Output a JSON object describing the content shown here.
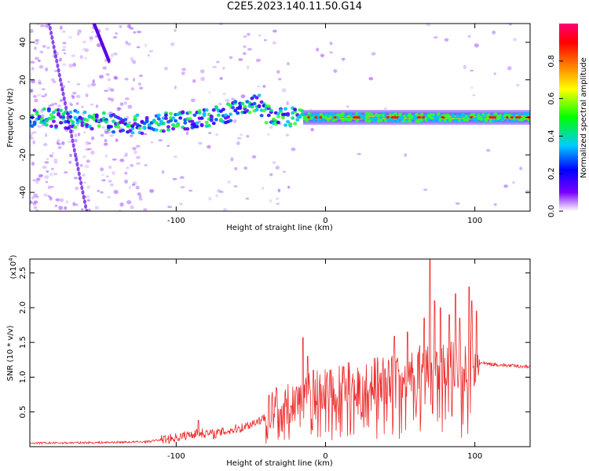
{
  "title": "C2E5.2023.140.11.50.G14",
  "chart_data": [
    {
      "type": "heatmap",
      "xlabel": "Height of straight line (km)",
      "ylabel": "Frequency (Hz)",
      "xlim": [
        -198,
        137
      ],
      "ylim": [
        -50,
        50
      ],
      "x_ticks": [
        -100,
        0,
        100
      ],
      "y_ticks": [
        -40,
        -20,
        0,
        20,
        40
      ],
      "colorbar": {
        "label": "Normalized spectral amplitude",
        "range": [
          0,
          1
        ],
        "ticks": [
          0.0,
          0.2,
          0.4,
          0.6,
          0.8
        ]
      },
      "ridge": [
        [
          -195,
          0
        ],
        [
          -170,
          -1
        ],
        [
          -150,
          -2
        ],
        [
          -130,
          -4
        ],
        [
          -110,
          -3
        ],
        [
          -90,
          -1
        ],
        [
          -70,
          1
        ],
        [
          -55,
          5
        ],
        [
          -45,
          8
        ],
        [
          -40,
          2
        ],
        [
          -30,
          0
        ],
        [
          -15,
          0
        ],
        [
          0,
          0
        ],
        [
          20,
          0
        ],
        [
          40,
          0
        ],
        [
          60,
          0
        ],
        [
          80,
          0
        ],
        [
          100,
          0
        ],
        [
          137,
          0
        ]
      ],
      "bright_band": [
        -15,
        137
      ]
    },
    {
      "type": "line",
      "xlabel": "Height of straight line (km)",
      "ylabel": "SNR (10 * v/v)",
      "y_scale_label": "(x10",
      "y_scale_exponent": "4",
      "xlim": [
        -198,
        137
      ],
      "ylim": [
        0,
        27000
      ],
      "x_ticks": [
        -100,
        0,
        100
      ],
      "y_ticks": [
        0.5,
        1.0,
        1.5,
        2.0,
        2.5
      ],
      "y_tick_labels": [
        "0.5",
        "1.0",
        "1.5",
        "2.0",
        "2.5"
      ],
      "envelope": [
        [
          -198,
          500
        ],
        [
          -150,
          600
        ],
        [
          -120,
          700
        ],
        [
          -100,
          1300
        ],
        [
          -85,
          2000
        ],
        [
          -75,
          1800
        ],
        [
          -55,
          2800
        ],
        [
          -40,
          4200
        ],
        [
          -25,
          6000
        ],
        [
          -15,
          7200
        ],
        [
          0,
          8200
        ],
        [
          20,
          8800
        ],
        [
          40,
          9600
        ],
        [
          55,
          10500
        ],
        [
          65,
          11500
        ],
        [
          80,
          11800
        ],
        [
          95,
          11400
        ],
        [
          103,
          12000
        ],
        [
          110,
          11900
        ],
        [
          120,
          11700
        ],
        [
          137,
          11500
        ]
      ],
      "spikes": [
        [
          -85,
          3800
        ],
        [
          -38,
          7400
        ],
        [
          -33,
          8500
        ],
        [
          -15,
          15700
        ],
        [
          -12,
          13000
        ],
        [
          -8,
          11000
        ],
        [
          3,
          11000
        ],
        [
          12,
          11500
        ],
        [
          46,
          15900
        ],
        [
          55,
          16500
        ],
        [
          66,
          18500
        ],
        [
          70,
          27000
        ],
        [
          73,
          21000
        ],
        [
          77,
          20000
        ],
        [
          83,
          19000
        ],
        [
          87,
          22000
        ],
        [
          90,
          18500
        ],
        [
          96,
          23000
        ],
        [
          98,
          21000
        ],
        [
          101,
          19500
        ]
      ]
    }
  ]
}
